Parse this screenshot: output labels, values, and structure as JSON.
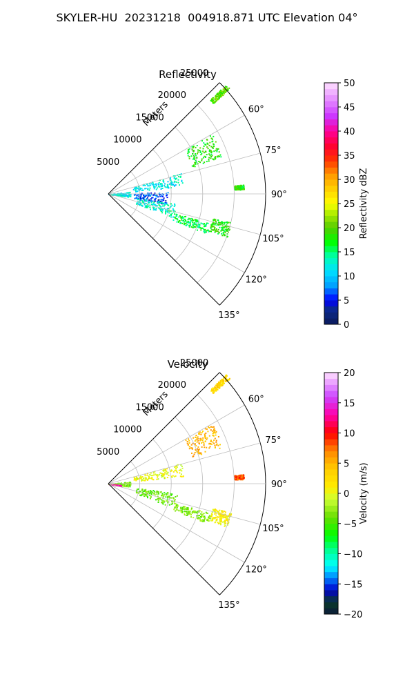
{
  "suptitle": "SKYLER-HU  20231218  004918.871 UTC Elevation 04°",
  "chart_data": [
    {
      "type": "polar_sector",
      "title": "Reflectivity",
      "radial_label": "Meters",
      "r_ticks": [
        5000,
        10000,
        15000,
        20000,
        25000
      ],
      "r_tick_labels": [
        "5000",
        "10000",
        "15000",
        "20000",
        "25000"
      ],
      "theta_ticks": [
        60,
        75,
        90,
        105,
        120,
        135
      ],
      "theta_tick_labels": [
        "60°",
        "75°",
        "90°",
        "105°",
        "120°",
        "135°"
      ],
      "theta_range": [
        45,
        135
      ],
      "r_range": [
        0,
        25000
      ],
      "grid": true,
      "colorbar": {
        "label": "Reflectivity dBZ",
        "range": [
          0,
          50
        ],
        "ticks": [
          0,
          5,
          10,
          15,
          20,
          25,
          30,
          35,
          40,
          45,
          50
        ],
        "tick_labels": [
          "0",
          "5",
          "10",
          "15",
          "20",
          "25",
          "30",
          "35",
          "40",
          "45",
          "50"
        ]
      },
      "echoes": [
        {
          "az": [
            60,
            72
          ],
          "r": [
            14000,
            19000
          ],
          "value": 18
        },
        {
          "az": [
            74,
            84
          ],
          "r": [
            4000,
            12000
          ],
          "value": 12
        },
        {
          "az": [
            84,
            98
          ],
          "r": [
            0,
            3500
          ],
          "value": 12
        },
        {
          "az": [
            88,
            100
          ],
          "r": [
            4000,
            9500
          ],
          "value": 6
        },
        {
          "az": [
            98,
            110
          ],
          "r": [
            4500,
            11000
          ],
          "value": 13
        },
        {
          "az": [
            106,
            112
          ],
          "r": [
            11000,
            17000
          ],
          "value": 16
        },
        {
          "az": [
            103,
            110
          ],
          "r": [
            17000,
            20000
          ],
          "value": 18
        },
        {
          "az": [
            47,
            49
          ],
          "r": [
            22000,
            25500
          ],
          "value": 20
        },
        {
          "az": [
            86,
            88
          ],
          "r": [
            20000,
            21500
          ],
          "value": 18
        }
      ]
    },
    {
      "type": "polar_sector",
      "title": "Velocity",
      "radial_label": "Meters",
      "r_ticks": [
        5000,
        10000,
        15000,
        20000,
        25000
      ],
      "r_tick_labels": [
        "5000",
        "10000",
        "15000",
        "20000",
        "25000"
      ],
      "theta_ticks": [
        60,
        75,
        90,
        105,
        120,
        135
      ],
      "theta_tick_labels": [
        "60°",
        "75°",
        "90°",
        "105°",
        "120°",
        "135°"
      ],
      "theta_range": [
        45,
        135
      ],
      "r_range": [
        0,
        25000
      ],
      "grid": true,
      "colorbar": {
        "label": "Velocity (m/s)",
        "range": [
          -20,
          20
        ],
        "ticks": [
          -20,
          -15,
          -10,
          -5,
          0,
          5,
          10,
          15,
          20
        ],
        "tick_labels": [
          "−20",
          "−15",
          "−10",
          "−5",
          "0",
          "5",
          "10",
          "15",
          "20"
        ]
      },
      "echoes": [
        {
          "az": [
            60,
            72
          ],
          "r": [
            14000,
            19000
          ],
          "value": 5
        },
        {
          "az": [
            74,
            84
          ],
          "r": [
            4000,
            12000
          ],
          "value": 0
        },
        {
          "az": [
            84,
            98
          ],
          "r": [
            0,
            3500
          ],
          "value": -4
        },
        {
          "az": [
            96,
            100
          ],
          "r": [
            0,
            2000
          ],
          "value": 13
        },
        {
          "az": [
            98,
            110
          ],
          "r": [
            4500,
            11000
          ],
          "value": -4
        },
        {
          "az": [
            106,
            112
          ],
          "r": [
            11000,
            17000
          ],
          "value": -3
        },
        {
          "az": [
            103,
            110
          ],
          "r": [
            17000,
            20000
          ],
          "value": 1
        },
        {
          "az": [
            47,
            49
          ],
          "r": [
            22000,
            25500
          ],
          "value": 3
        },
        {
          "az": [
            86,
            88
          ],
          "r": [
            20000,
            21500
          ],
          "value": 8
        }
      ]
    }
  ]
}
